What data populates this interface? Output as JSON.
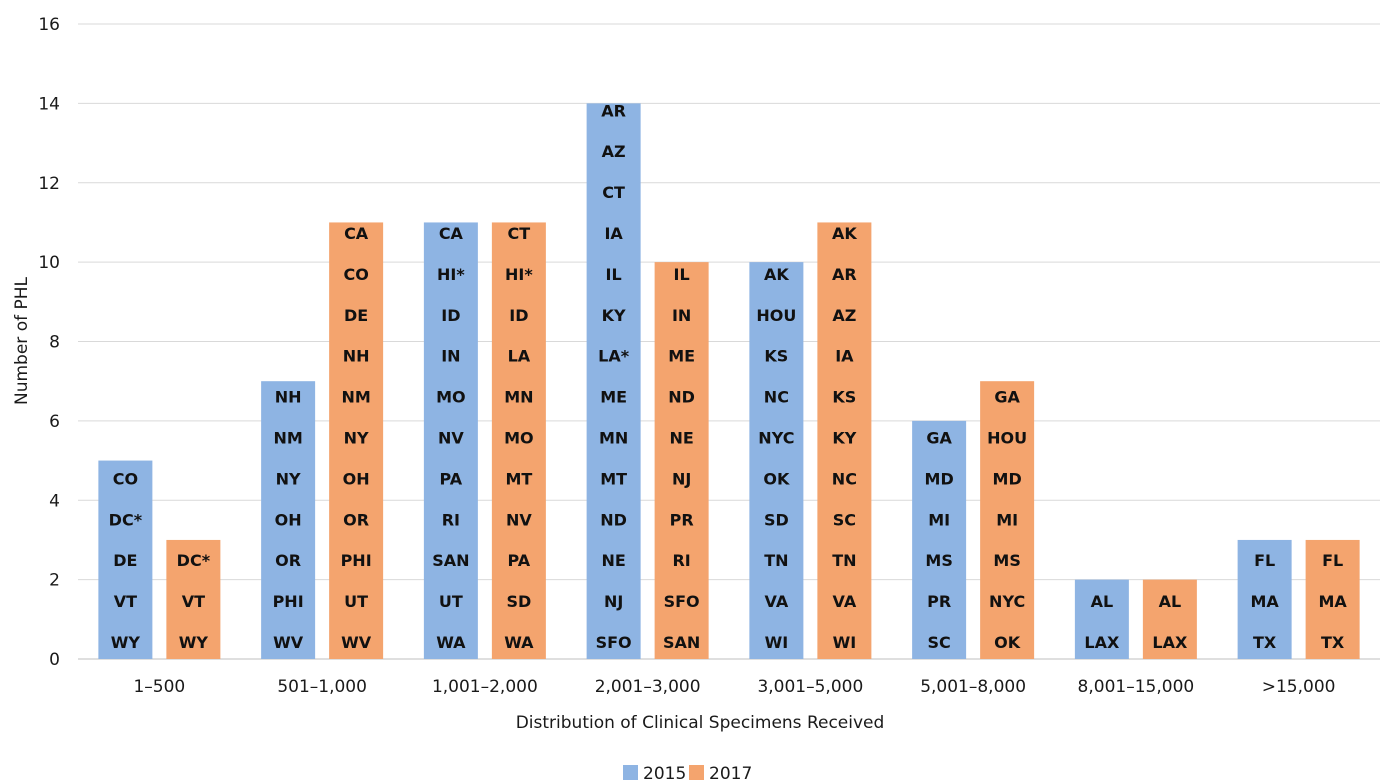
{
  "chart_data": {
    "type": "bar",
    "xlabel": "Distribution of Clinical Specimens Received",
    "ylabel": "Number of PHL",
    "ylim": [
      0,
      16
    ],
    "yticks": [
      0,
      2,
      4,
      6,
      8,
      10,
      12,
      14,
      16
    ],
    "grid": true,
    "legend_position": "bottom",
    "categories": [
      "1–500",
      "501–1,000",
      "1,001–2,000",
      "2,001–3,000",
      "3,001–5,000",
      "5,001–8,000",
      "8,001–15,000",
      ">15,000"
    ],
    "series": [
      {
        "name": "2015",
        "color": "#8eb4e3",
        "values": [
          5,
          7,
          11,
          14,
          10,
          6,
          2,
          3
        ],
        "labels": [
          [
            "CO",
            "DC*",
            "DE",
            "VT",
            "WY"
          ],
          [
            "NH",
            "NM",
            "NY",
            "OH",
            "OR",
            "PHI",
            "WV"
          ],
          [
            "CA",
            "HI*",
            "ID",
            "IN",
            "MO",
            "NV",
            "PA",
            "RI",
            "SAN",
            "UT",
            "WA"
          ],
          [
            "AR",
            "AZ",
            "CT",
            "IA",
            "IL",
            "KY",
            "LA*",
            "ME",
            "MN",
            "MT",
            "ND",
            "NE",
            "NJ",
            "SFO"
          ],
          [
            "AK",
            "HOU",
            "KS",
            "NC",
            "NYC",
            "OK",
            "SD",
            "TN",
            "VA",
            "WI"
          ],
          [
            "GA",
            "MD",
            "MI",
            "MS",
            "PR",
            "SC"
          ],
          [
            "AL",
            "LAX"
          ],
          [
            "FL",
            "MA",
            "TX"
          ]
        ]
      },
      {
        "name": "2017",
        "color": "#f4a46e",
        "values": [
          3,
          11,
          11,
          10,
          11,
          7,
          2,
          3
        ],
        "labels": [
          [
            "DC*",
            "VT",
            "WY"
          ],
          [
            "CA",
            "CO",
            "DE",
            "NH",
            "NM",
            "NY",
            "OH",
            "OR",
            "PHI",
            "UT",
            "WV"
          ],
          [
            "CT",
            "HI*",
            "ID",
            "LA",
            "MN",
            "MO",
            "MT",
            "NV",
            "PA",
            "SD",
            "WA"
          ],
          [
            "IL",
            "IN",
            "ME",
            "ND",
            "NE",
            "NJ",
            "PR",
            "RI",
            "SFO",
            "SAN"
          ],
          [
            "AK",
            "AR",
            "AZ",
            "IA",
            "KS",
            "KY",
            "NC",
            "SC",
            "TN",
            "VA",
            "WI"
          ],
          [
            "GA",
            "HOU",
            "MD",
            "MI",
            "MS",
            "NYC",
            "OK"
          ],
          [
            "AL",
            "LAX"
          ],
          [
            "FL",
            "MA",
            "TX"
          ]
        ]
      }
    ]
  }
}
